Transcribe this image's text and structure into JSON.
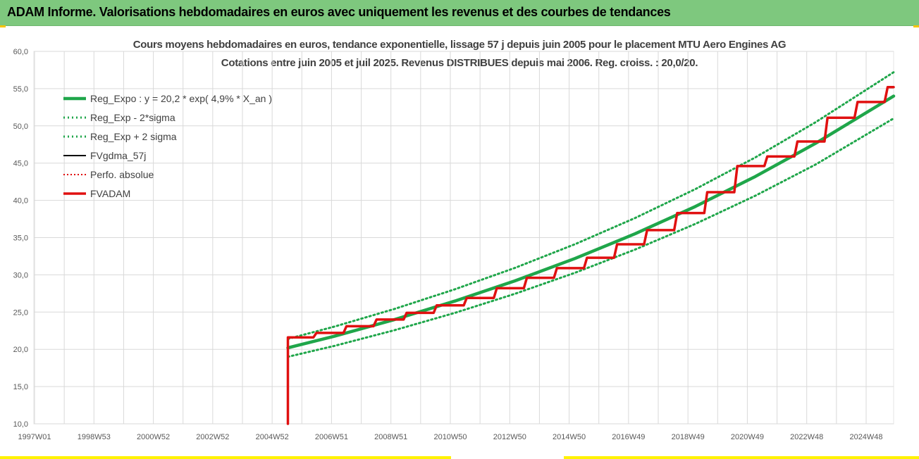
{
  "window": {
    "title": "ADAM Informe. Valorisations hebdomadaires en euros avec uniquement les revenus et des courbes de tendances"
  },
  "colors": {
    "header_bg": "#7ec87e",
    "reg_expo": "#1fa64a",
    "sigma": "#1fa64a",
    "fvgdma": "#000000",
    "perfo": "#e00000",
    "fvadam": "#e01010",
    "grid": "#d9d9d9"
  },
  "chart_data": {
    "type": "line",
    "title": "Cours moyens hebdomadaires en euros, tendance exponentielle, lissage 57 j depuis juin 2005 pour le placement MTU Aero Engines AG",
    "subtitle": "Cotations entre juin 2005 et juil 2025. Revenus DISTRIBUES depuis mai 2006. Reg. croiss. : 20,0/20.",
    "xlabel": "",
    "ylabel": "",
    "ylim": [
      10,
      60
    ],
    "y_ticks": [
      "10,0",
      "15,0",
      "20,0",
      "25,0",
      "30,0",
      "35,0",
      "40,0",
      "45,0",
      "50,0",
      "55,0",
      "60,0"
    ],
    "x_tick_labels": [
      "1997W01",
      "1998W53",
      "2000W52",
      "2002W52",
      "2004W52",
      "2006W51",
      "2008W51",
      "2010W50",
      "2012W50",
      "2014W50",
      "2016W49",
      "2018W49",
      "2020W49",
      "2022W48",
      "2024W48"
    ],
    "x_range_years": [
      1997.0,
      2025.6
    ],
    "grid": true,
    "legend_position": "top-left",
    "legend": [
      "Reg_Expo : y = 20,2 * exp( 4,9% *  X_an )",
      "Reg_Exp - 2*sigma",
      "Reg_Exp + 2 sigma",
      "FVgdma_57j",
      "Perfo. absolue",
      "FVADAM"
    ],
    "series": [
      {
        "name": "Reg_Expo : y = 20,2 * exp( 4,9% *  X_an )",
        "style": "solid-thick",
        "x": [
          2005.45,
          2007,
          2009,
          2011,
          2013,
          2015,
          2017,
          2019,
          2021,
          2023,
          2025.6
        ],
        "y": [
          20.2,
          21.76,
          24.0,
          26.47,
          29.19,
          32.19,
          35.51,
          39.17,
          43.2,
          47.65,
          54.0
        ]
      },
      {
        "name": "Reg_Exp - 2*sigma",
        "style": "dotted",
        "x": [
          2005.45,
          2007,
          2009,
          2011,
          2013,
          2015,
          2017,
          2019,
          2021,
          2023,
          2025.6
        ],
        "y": [
          19.0,
          20.46,
          22.57,
          24.89,
          27.45,
          30.27,
          33.39,
          36.83,
          40.62,
          44.8,
          51.0
        ]
      },
      {
        "name": "Reg_Exp + 2 sigma",
        "style": "dotted",
        "x": [
          2005.45,
          2007,
          2009,
          2011,
          2013,
          2015,
          2017,
          2019,
          2021,
          2023,
          2025.6
        ],
        "y": [
          21.4,
          23.05,
          25.43,
          28.05,
          30.93,
          34.11,
          37.63,
          41.5,
          45.77,
          50.48,
          57.2
        ]
      },
      {
        "name": "FVgdma_57j",
        "style": "solid-thin",
        "x": [
          2005.45,
          2006.3,
          2006.4,
          2007.3,
          2007.4,
          2008.3,
          2008.4,
          2009.3,
          2009.4,
          2010.3,
          2010.4,
          2011.3,
          2011.4,
          2012.3,
          2012.4,
          2013.3,
          2013.4,
          2014.3,
          2014.4,
          2015.3,
          2015.4,
          2016.3,
          2016.4,
          2017.3,
          2017.4,
          2018.3,
          2018.4,
          2019.3,
          2019.4,
          2020.3,
          2020.4,
          2021.3,
          2021.4,
          2022.3,
          2022.4,
          2023.3,
          2023.4,
          2024.3,
          2024.4,
          2025.3,
          2025.4,
          2025.6
        ],
        "y": [
          21.6,
          21.6,
          22.2,
          22.2,
          23.1,
          23.1,
          24.0,
          24.0,
          24.9,
          24.9,
          25.9,
          25.9,
          26.9,
          26.9,
          28.2,
          28.2,
          29.6,
          29.6,
          30.9,
          30.9,
          32.3,
          32.3,
          34.1,
          34.1,
          36.0,
          36.0,
          38.3,
          38.3,
          41.1,
          41.1,
          44.6,
          44.6,
          45.9,
          45.9,
          47.9,
          47.9,
          51.1,
          51.1,
          53.2,
          53.2,
          55.2,
          55.2
        ]
      },
      {
        "name": "Perfo. absolue",
        "style": "dotted-red",
        "x": [],
        "y": []
      },
      {
        "name": "FVADAM",
        "style": "solid-thick-red",
        "x": [
          2005.45,
          2005.45,
          2006.3,
          2006.4,
          2007.3,
          2007.4,
          2008.3,
          2008.4,
          2009.3,
          2009.4,
          2010.3,
          2010.4,
          2011.3,
          2011.4,
          2012.3,
          2012.4,
          2013.3,
          2013.4,
          2014.3,
          2014.4,
          2015.3,
          2015.4,
          2016.3,
          2016.4,
          2017.3,
          2017.4,
          2018.3,
          2018.4,
          2019.3,
          2019.4,
          2020.3,
          2020.4,
          2021.3,
          2021.4,
          2022.3,
          2022.4,
          2023.3,
          2023.4,
          2024.3,
          2024.4,
          2025.3,
          2025.4,
          2025.6
        ],
        "y": [
          10.0,
          21.6,
          21.6,
          22.2,
          22.2,
          23.1,
          23.1,
          24.0,
          24.0,
          24.9,
          24.9,
          25.9,
          25.9,
          26.9,
          26.9,
          28.2,
          28.2,
          29.6,
          29.6,
          30.9,
          30.9,
          32.3,
          32.3,
          34.1,
          34.1,
          36.0,
          36.0,
          38.3,
          38.3,
          41.1,
          41.1,
          44.6,
          44.6,
          45.9,
          45.9,
          47.9,
          47.9,
          51.1,
          51.1,
          53.2,
          53.2,
          55.2,
          55.2
        ]
      }
    ]
  }
}
